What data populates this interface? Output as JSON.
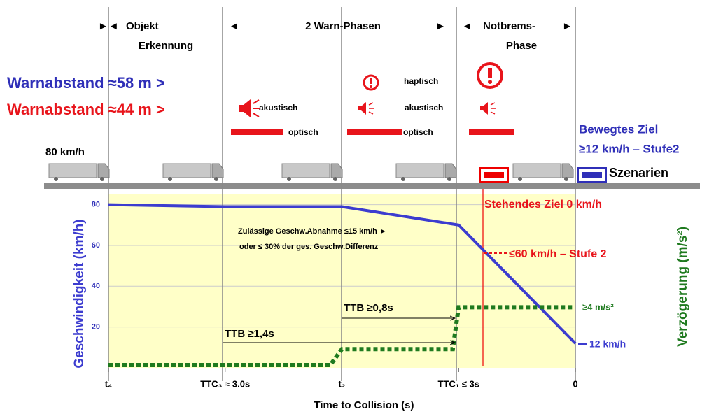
{
  "phases": [
    [
      "Objekt",
      "Erkennung"
    ],
    [
      "2 Warn-Phasen"
    ],
    [
      "Notbrems-",
      "Phase"
    ]
  ],
  "warn_blue": "Warnabstand ≈58 m >",
  "warn_red": "Warnabstand ≈44 m >",
  "signals": {
    "akustisch": "akustisch",
    "optisch": "optisch",
    "haptisch": "haptisch"
  },
  "speed_start": "80 km/h",
  "moving_target": [
    "Bewegtes Ziel",
    "≥12 km/h – Stufe2"
  ],
  "scenarios": "Szenarien",
  "chart_data": {
    "type": "line",
    "y_label": "Geschwindigkeit (km/h)",
    "y2_label": "Verzögerung (m/s²)",
    "x_label": "Time to Collision (s)",
    "xlim": [
      4,
      0
    ],
    "xticks": [
      {
        "value": 4,
        "label": "t₄"
      },
      {
        "value": 3,
        "label": "TTC₃ ≈ 3.0s"
      },
      {
        "value": 2,
        "label": "t₂"
      },
      {
        "value": 1,
        "label": "TTC₁ ≤ 3s"
      },
      0
    ],
    "ylim": [
      0,
      85
    ],
    "yticks": [
      20,
      40,
      60,
      80
    ],
    "y2lim": [
      0,
      12
    ],
    "grid": true,
    "series": [
      {
        "color": "#3c3ccf",
        "x": [
          4,
          3,
          2,
          1,
          0
        ],
        "values": [
          80,
          79,
          79,
          70,
          12
        ]
      },
      {
        "color": "#1f7a1f",
        "axis": "y2",
        "x": [
          4,
          2.1,
          2,
          1.05,
          1,
          0
        ],
        "values": [
          0,
          0,
          1.1,
          1.1,
          4,
          4
        ]
      }
    ],
    "annotations": {
      "standing": "Stehendes Ziel  0 km/h",
      "stufe2": "≤60 km/h – Stufe 2",
      "limit": [
        "Zulässige Geschw.Abnahme ≤15 km/h ►",
        "oder ≤ 30% der ges. Geschw.Differenz"
      ],
      "ttb1": "TTB ≥0,8s",
      "ttb2": "TTB ≥1,4s",
      "decel": "≥4 m/s²",
      "end_speed": "12 km/h"
    }
  }
}
